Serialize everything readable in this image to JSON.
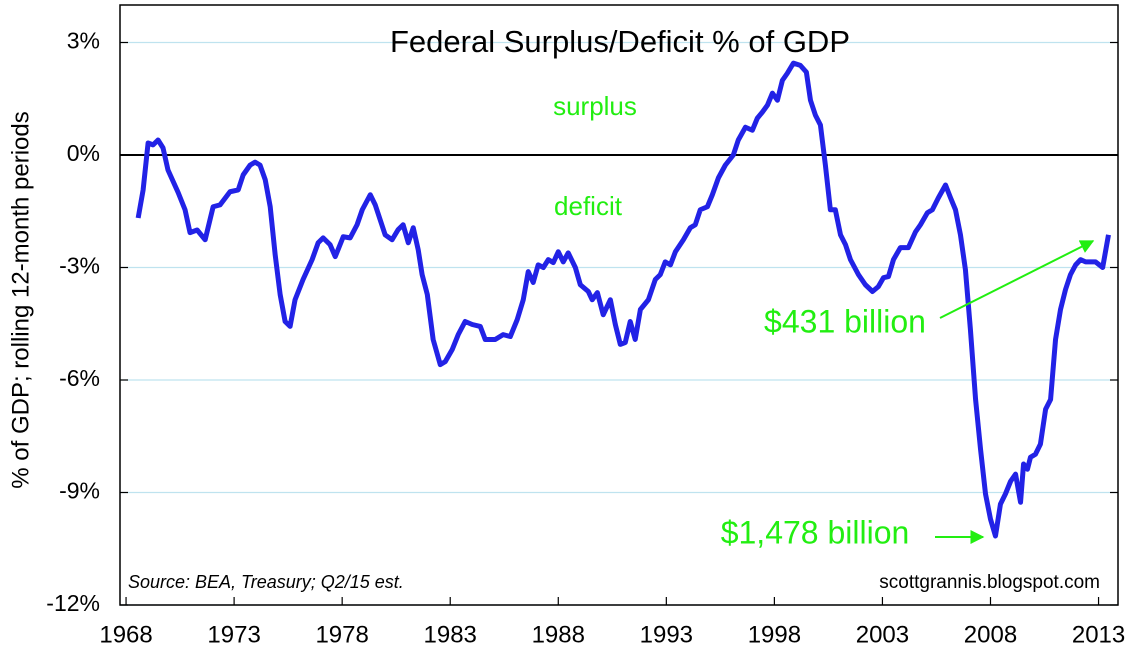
{
  "chart_data": {
    "type": "line",
    "title": "Federal Surplus/Deficit % of GDP",
    "y_label": "% of GDP; rolling 12-month periods",
    "annotations": [
      {
        "text": "surplus"
      },
      {
        "text": "deficit"
      },
      {
        "text": "$431 billion"
      },
      {
        "text": "$1,478 billion"
      }
    ],
    "source": "Source:  BEA, Treasury; Q2/15 est.",
    "credit": "scottgrannis.blogspot.com",
    "xlim": [
      1967.72,
      2013.9
    ],
    "xticks": [
      1968,
      1973,
      1978,
      1983,
      1988,
      1993,
      1998,
      2003,
      2008,
      2013
    ],
    "ylim": [
      -12,
      4
    ],
    "yticks": [
      {
        "value": -12,
        "label": "-12%"
      },
      {
        "value": -9,
        "label": "-9%"
      },
      {
        "value": -6,
        "label": "-6%"
      },
      {
        "value": -3,
        "label": "-3%"
      },
      {
        "value": 0,
        "label": "0%"
      },
      {
        "value": 3,
        "label": "3%"
      }
    ],
    "grid": true,
    "grid_color": "#bfe3ef",
    "annotation_color": "#22ee11",
    "x": [
      1968.56,
      1968.79,
      1969.02,
      1969.25,
      1969.48,
      1969.71,
      1969.94,
      1970.41,
      1970.73,
      1970.96,
      1971.29,
      1971.66,
      1972.03,
      1972.35,
      1972.81,
      1973.19,
      1973.42,
      1973.74,
      1973.97,
      1974.2,
      1974.44,
      1974.67,
      1974.9,
      1975.13,
      1975.36,
      1975.59,
      1975.82,
      1976.19,
      1976.61,
      1976.89,
      1977.12,
      1977.44,
      1977.68,
      1978.05,
      1978.37,
      1978.69,
      1978.93,
      1979.3,
      1979.53,
      1979.76,
      1979.99,
      1980.31,
      1980.59,
      1980.82,
      1981.06,
      1981.29,
      1981.52,
      1981.7,
      1981.94,
      1982.21,
      1982.54,
      1982.77,
      1983.09,
      1983.37,
      1983.69,
      1984.02,
      1984.39,
      1984.62,
      1985.08,
      1985.45,
      1985.78,
      1986.1,
      1986.38,
      1986.61,
      1986.84,
      1987.07,
      1987.31,
      1987.54,
      1987.77,
      1988.0,
      1988.23,
      1988.46,
      1988.79,
      1989.02,
      1989.39,
      1989.57,
      1989.81,
      1990.08,
      1990.41,
      1990.64,
      1990.87,
      1991.1,
      1991.33,
      1991.56,
      1991.8,
      1992.17,
      1992.49,
      1992.72,
      1992.95,
      1993.19,
      1993.42,
      1993.79,
      1994.11,
      1994.34,
      1994.57,
      1994.9,
      1995.13,
      1995.41,
      1995.73,
      1996.1,
      1996.33,
      1996.66,
      1996.98,
      1997.21,
      1997.44,
      1997.68,
      1997.91,
      1998.14,
      1998.37,
      1998.6,
      1998.88,
      1999.2,
      1999.48,
      1999.67,
      1999.9,
      2000.13,
      2000.36,
      2000.59,
      2000.82,
      2001.06,
      2001.29,
      2001.52,
      2001.89,
      2002.21,
      2002.54,
      2002.81,
      2003.05,
      2003.28,
      2003.51,
      2003.83,
      2004.2,
      2004.53,
      2004.76,
      2005.08,
      2005.31,
      2005.59,
      2005.92,
      2006.15,
      2006.38,
      2006.61,
      2006.84,
      2007.07,
      2007.31,
      2007.54,
      2007.77,
      2008.0,
      2008.23,
      2008.46,
      2008.69,
      2008.93,
      2009.16,
      2009.39,
      2009.53,
      2009.71,
      2009.85,
      2010.08,
      2010.31,
      2010.55,
      2010.78,
      2011.01,
      2011.24,
      2011.47,
      2011.7,
      2011.94,
      2012.17,
      2012.4,
      2012.63,
      2012.86,
      2013.19,
      2013.46
    ],
    "series": [
      {
        "name": "Surplus/Deficit % of GDP",
        "color": "#2222e6",
        "values": [
          -1.68,
          -0.93,
          0.32,
          0.27,
          0.4,
          0.19,
          -0.4,
          -1.0,
          -1.46,
          -2.07,
          -2.0,
          -2.26,
          -1.38,
          -1.33,
          -0.98,
          -0.93,
          -0.53,
          -0.27,
          -0.19,
          -0.27,
          -0.66,
          -1.38,
          -2.66,
          -3.72,
          -4.44,
          -4.57,
          -3.86,
          -3.32,
          -2.79,
          -2.34,
          -2.21,
          -2.39,
          -2.71,
          -2.18,
          -2.21,
          -1.86,
          -1.46,
          -1.06,
          -1.33,
          -1.73,
          -2.13,
          -2.26,
          -1.99,
          -1.86,
          -2.34,
          -1.94,
          -2.53,
          -3.19,
          -3.72,
          -4.92,
          -5.59,
          -5.51,
          -5.19,
          -4.79,
          -4.44,
          -4.52,
          -4.57,
          -4.92,
          -4.92,
          -4.79,
          -4.84,
          -4.39,
          -3.86,
          -3.11,
          -3.4,
          -2.93,
          -3.0,
          -2.79,
          -2.87,
          -2.58,
          -2.85,
          -2.61,
          -3.0,
          -3.46,
          -3.64,
          -3.86,
          -3.67,
          -4.26,
          -3.86,
          -4.52,
          -5.05,
          -5.0,
          -4.44,
          -4.92,
          -4.12,
          -3.86,
          -3.32,
          -3.19,
          -2.85,
          -2.93,
          -2.58,
          -2.26,
          -1.94,
          -1.86,
          -1.46,
          -1.38,
          -1.06,
          -0.61,
          -0.27,
          0,
          0.4,
          0.74,
          0.66,
          0.98,
          1.14,
          1.33,
          1.65,
          1.46,
          1.99,
          2.18,
          2.45,
          2.39,
          2.21,
          1.46,
          1.06,
          0.8,
          -0.27,
          -1.46,
          -1.46,
          -2.13,
          -2.39,
          -2.79,
          -3.19,
          -3.46,
          -3.64,
          -3.51,
          -3.27,
          -3.24,
          -2.79,
          -2.47,
          -2.47,
          -2.05,
          -1.86,
          -1.54,
          -1.46,
          -1.14,
          -0.8,
          -1.14,
          -1.46,
          -2.13,
          -3.06,
          -4.65,
          -6.52,
          -7.85,
          -9.04,
          -9.71,
          -10.16,
          -9.31,
          -9.04,
          -8.7,
          -8.51,
          -9.26,
          -8.24,
          -8.38,
          -8.06,
          -7.98,
          -7.71,
          -6.78,
          -6.52,
          -4.92,
          -4.12,
          -3.59,
          -3.19,
          -2.93,
          -2.79,
          -2.85,
          -2.85,
          -2.85,
          -3.0,
          -2.13
        ]
      }
    ]
  }
}
